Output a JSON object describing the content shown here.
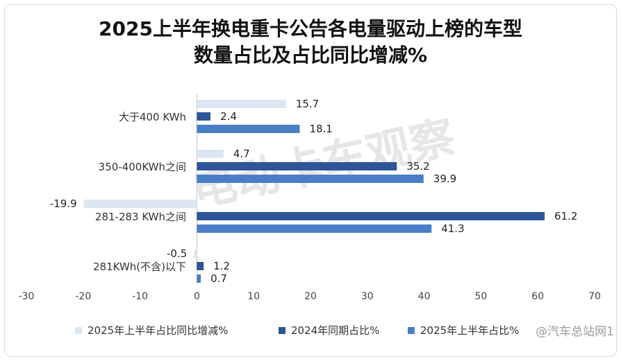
{
  "chart_data": {
    "type": "bar",
    "orientation": "horizontal",
    "title": "2025上半年换电重卡公告各电量驱动上榜的车型",
    "subtitle": "数量占比及占比同比增减%",
    "categories": [
      "大于400 KWh",
      "350-400KWh之间",
      "281-283 KWh之间",
      "281KWh(不含)以下"
    ],
    "series": [
      {
        "name": "2025年上半年占比同比增减%",
        "values": [
          15.7,
          4.7,
          -19.9,
          -0.5
        ],
        "color": "#dce6f2"
      },
      {
        "name": "2024年同期占比%",
        "values": [
          2.4,
          35.2,
          61.2,
          1.2
        ],
        "color": "#2e5597"
      },
      {
        "name": "2025年上半年占比%",
        "values": [
          18.1,
          39.9,
          41.3,
          0.7
        ],
        "color": "#4a7ec6"
      }
    ],
    "xlim": [
      -30,
      70
    ],
    "xticks": [
      -30,
      -20,
      -10,
      0,
      10,
      20,
      30,
      40,
      50,
      60,
      70
    ],
    "legend_position": "bottom",
    "grid": false
  },
  "watermark": "电动卡车观察",
  "source_badge": "@汽车总站网1"
}
